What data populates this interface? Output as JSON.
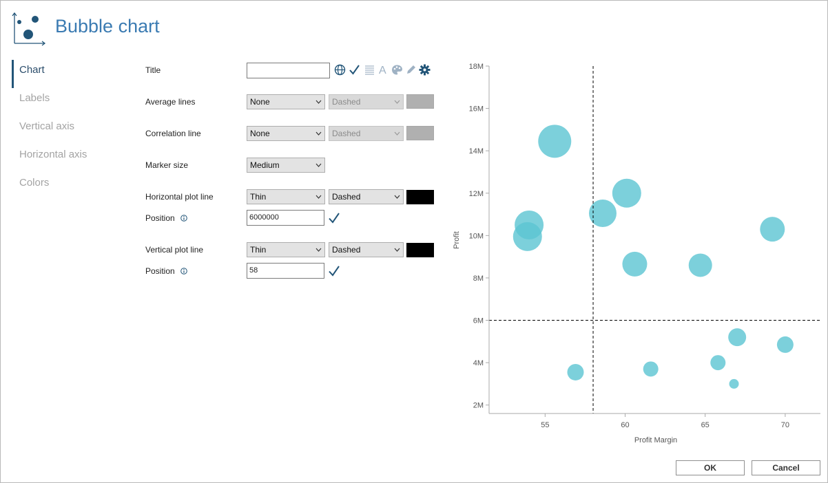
{
  "header": {
    "title": "Bubble chart",
    "icon": "bubble-chart-icon"
  },
  "nav": {
    "items": [
      {
        "label": "Chart",
        "active": true
      },
      {
        "label": "Labels",
        "active": false
      },
      {
        "label": "Vertical axis",
        "active": false
      },
      {
        "label": "Horizontal axis",
        "active": false
      },
      {
        "label": "Colors",
        "active": false
      }
    ]
  },
  "form": {
    "title": {
      "label": "Title",
      "value": ""
    },
    "average_lines": {
      "label": "Average lines",
      "line": "None",
      "style": "Dashed",
      "color": "#b0b0b0"
    },
    "correlation_line": {
      "label": "Correlation line",
      "line": "None",
      "style": "Dashed",
      "color": "#b0b0b0"
    },
    "marker_size": {
      "label": "Marker size",
      "value": "Medium"
    },
    "horizontal_plot_line": {
      "label": "Horizontal plot line",
      "thickness": "Thin",
      "style": "Dashed",
      "color": "#000000",
      "position_label": "Position",
      "position": "6000000"
    },
    "vertical_plot_line": {
      "label": "Vertical plot line",
      "thickness": "Thin",
      "style": "Dashed",
      "color": "#000000",
      "position_label": "Position",
      "position": "58"
    }
  },
  "accent_color": "#225578",
  "chart_data": {
    "type": "scatter",
    "xlabel": "Profit Margin",
    "ylabel": "Profit",
    "xlim": [
      51.5,
      72.2
    ],
    "ylim": [
      1.6,
      18
    ],
    "xticks": [
      55,
      60,
      65,
      70
    ],
    "yticks": [
      2,
      4,
      6,
      8,
      10,
      12,
      14,
      16,
      18
    ],
    "ytick_labels": [
      "2M",
      "4M",
      "6M",
      "8M",
      "10M",
      "12M",
      "14M",
      "16M",
      "18M"
    ],
    "bubble_color": "#5bc4d2",
    "reference_lines": {
      "horizontal": 6,
      "vertical": 58
    },
    "points": [
      {
        "x": 55.6,
        "y": 14.45,
        "size": 24
      },
      {
        "x": 60.1,
        "y": 12.0,
        "size": 21
      },
      {
        "x": 58.6,
        "y": 11.05,
        "size": 20
      },
      {
        "x": 54.0,
        "y": 10.5,
        "size": 21
      },
      {
        "x": 53.9,
        "y": 9.95,
        "size": 21
      },
      {
        "x": 69.2,
        "y": 10.3,
        "size": 18
      },
      {
        "x": 60.6,
        "y": 8.65,
        "size": 18
      },
      {
        "x": 64.7,
        "y": 8.6,
        "size": 17
      },
      {
        "x": 67.0,
        "y": 5.2,
        "size": 13
      },
      {
        "x": 70.0,
        "y": 4.85,
        "size": 12
      },
      {
        "x": 65.8,
        "y": 4.0,
        "size": 11
      },
      {
        "x": 56.9,
        "y": 3.55,
        "size": 12
      },
      {
        "x": 61.6,
        "y": 3.7,
        "size": 11
      },
      {
        "x": 66.8,
        "y": 3.0,
        "size": 7
      }
    ]
  },
  "buttons": {
    "ok": "OK",
    "cancel": "Cancel"
  }
}
